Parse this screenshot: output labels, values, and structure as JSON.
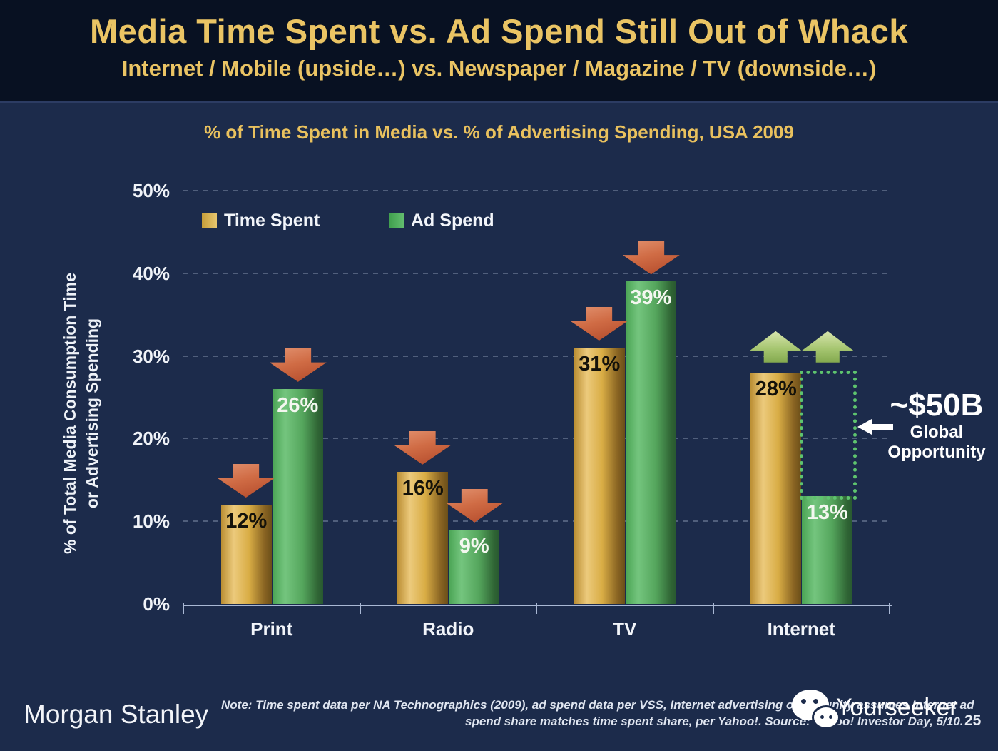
{
  "slide": {
    "title": "Media Time Spent vs. Ad Spend Still Out of Whack",
    "subtitle": "Internet / Mobile (upside…) vs. Newspaper / Magazine / TV (downside…)"
  },
  "chart_data": {
    "type": "bar",
    "title": "% of Time Spent in Media vs. % of Advertising Spending, USA 2009",
    "ylabel_line1": "% of Total Media Consumption Time",
    "ylabel_line2": "or Advertising Spending",
    "categories": [
      "Print",
      "Radio",
      "TV",
      "Internet"
    ],
    "series": [
      {
        "name": "Time Spent",
        "color": "#D9AD45",
        "values": [
          12,
          16,
          31,
          28
        ]
      },
      {
        "name": "Ad Spend",
        "color": "#54A55C",
        "values": [
          26,
          9,
          39,
          13
        ]
      }
    ],
    "y_ticks": [
      "0%",
      "10%",
      "20%",
      "30%",
      "40%",
      "50%"
    ],
    "ylim": [
      0,
      50
    ],
    "grid": "horizontal-dashed",
    "legend_position": "top-left-inside",
    "trend_arrows": {
      "Print": "down",
      "Radio": "down",
      "TV": "down",
      "Internet": "up"
    },
    "annotation": {
      "value": "~$50B",
      "line1": "Global",
      "line2": "Opportunity",
      "category": "Internet",
      "series": "Ad Spend",
      "from_value": 13,
      "to_value": 28
    }
  },
  "colors": {
    "header_bg": "#081122",
    "body_bg": "#1C2B4B",
    "title_gold": "#EAC464",
    "bar_gold": "#D9AD45",
    "bar_green": "#54A55C",
    "arrow_down_red": "#C25B38",
    "arrow_up_green": "#A6C671",
    "opportunity_dotted_green": "#5EC46E"
  },
  "icons": {
    "watermark_icon": "wechat-icon",
    "annotation_arrow": "left-arrow-icon"
  },
  "footer": {
    "brand": "Morgan Stanley",
    "note_line1": "Note: Time spent data per NA Technographics (2009), ad spend data per VSS, Internet advertising opportunity assumes Internet ad",
    "note_line2": "spend share matches time spent share, per Yahoo!. Source: Yahoo! Investor Day, 5/10.",
    "watermark": "Yourseeker",
    "page_number": "25"
  }
}
